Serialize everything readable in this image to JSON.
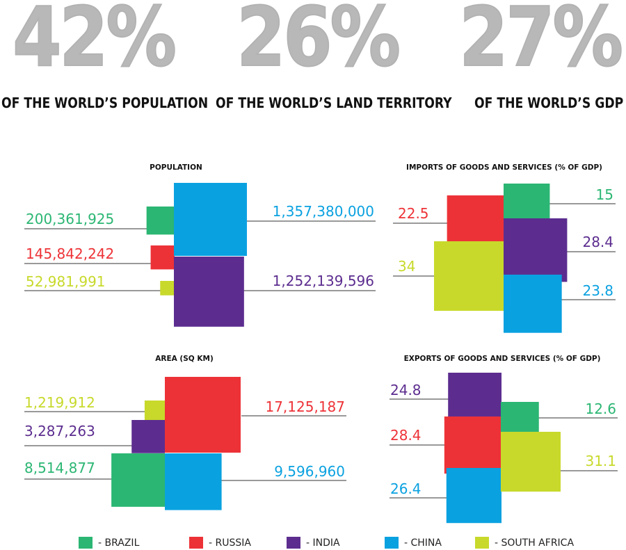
{
  "headline_stats": [
    {
      "value": "42%",
      "label": "OF THE WORLD’S POPULATION"
    },
    {
      "value": "26%",
      "label": "OF THE WORLD’S LAND TERRITORY"
    },
    {
      "value": "27%",
      "label": "OF THE WORLD’S GDP"
    }
  ],
  "legend": [
    {
      "label": "- BRAZIL",
      "color": "#2bb673"
    },
    {
      "label": "- RUSSIA",
      "color": "#ed3237"
    },
    {
      "label": "- INDIA",
      "color": "#5c2d8f"
    },
    {
      "label": "- CHINA",
      "color": "#0aa1e0"
    },
    {
      "label": "- SOUTH AFRICA",
      "color": "#c8d92b"
    }
  ],
  "chart_data": [
    {
      "type": "area-squares",
      "title": "POPULATION",
      "values": [
        {
          "country": "Brazil",
          "value": 200361925,
          "label": "200,361,925",
          "color": "#2bb673"
        },
        {
          "country": "Russia",
          "value": 145842242,
          "label": "145,842,242",
          "color": "#ed3237"
        },
        {
          "country": "South Africa",
          "value": 52981991,
          "label": "52,981,991",
          "color": "#c8d92b"
        },
        {
          "country": "China",
          "value": 1357380000,
          "label": "1,357,380,000",
          "color": "#0aa1e0"
        },
        {
          "country": "India",
          "value": 1252139596,
          "label": "1,252,139,596",
          "color": "#5c2d8f"
        }
      ]
    },
    {
      "type": "area-squares",
      "title": "IMPORTS OF GOODS AND SERVICES (% OF GDP)",
      "values": [
        {
          "country": "Russia",
          "value": 22.5,
          "label": "22.5",
          "color": "#ed3237"
        },
        {
          "country": "South Africa",
          "value": 34,
          "label": "34",
          "color": "#c8d92b"
        },
        {
          "country": "Brazil",
          "value": 15,
          "label": "15",
          "color": "#2bb673"
        },
        {
          "country": "India",
          "value": 28.4,
          "label": "28.4",
          "color": "#5c2d8f"
        },
        {
          "country": "China",
          "value": 23.8,
          "label": "23.8",
          "color": "#0aa1e0"
        }
      ]
    },
    {
      "type": "area-squares",
      "title": "AREA (SQ KM)",
      "values": [
        {
          "country": "South Africa",
          "value": 1219912,
          "label": "1,219,912",
          "color": "#c8d92b"
        },
        {
          "country": "India",
          "value": 3287263,
          "label": "3,287,263",
          "color": "#5c2d8f"
        },
        {
          "country": "Brazil",
          "value": 8514877,
          "label": "8,514,877",
          "color": "#2bb673"
        },
        {
          "country": "Russia",
          "value": 17125187,
          "label": "17,125,187",
          "color": "#ed3237"
        },
        {
          "country": "China",
          "value": 9596960,
          "label": "9,596,960",
          "color": "#0aa1e0"
        }
      ]
    },
    {
      "type": "area-squares",
      "title": "EXPORTS OF GOODS AND SERVICES (% OF GDP)",
      "values": [
        {
          "country": "India",
          "value": 24.8,
          "label": "24.8",
          "color": "#5c2d8f"
        },
        {
          "country": "Russia",
          "value": 28.4,
          "label": "28.4",
          "color": "#ed3237"
        },
        {
          "country": "China",
          "value": 26.4,
          "label": "26.4",
          "color": "#0aa1e0"
        },
        {
          "country": "Brazil",
          "value": 12.6,
          "label": "12.6",
          "color": "#2bb673"
        },
        {
          "country": "South Africa",
          "value": 31.1,
          "label": "31.1",
          "color": "#c8d92b"
        }
      ]
    }
  ]
}
